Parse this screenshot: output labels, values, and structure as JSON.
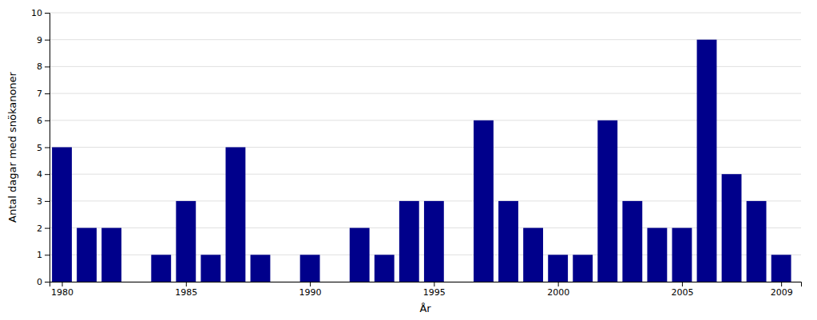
{
  "chart_data": {
    "type": "bar",
    "x": [
      1980,
      1981,
      1982,
      1983,
      1984,
      1985,
      1986,
      1987,
      1988,
      1989,
      1990,
      1991,
      1992,
      1993,
      1994,
      1995,
      1996,
      1997,
      1998,
      1999,
      2000,
      2001,
      2002,
      2003,
      2004,
      2005,
      2006,
      2007,
      2008,
      2009
    ],
    "values": [
      5,
      2,
      2,
      0,
      1,
      3,
      1,
      5,
      1,
      0,
      1,
      0,
      2,
      1,
      3,
      3,
      0,
      6,
      3,
      2,
      1,
      1,
      6,
      3,
      2,
      2,
      9,
      4,
      3,
      1
    ],
    "color": "#00008B",
    "xlabel": "År",
    "ylabel": "Antal dagar med snökanoner",
    "xlim": [
      1979.5,
      2009.8
    ],
    "ylim": [
      0,
      10
    ],
    "xticks": [
      1980,
      1985,
      1990,
      1995,
      2000,
      2005,
      2009
    ],
    "yticks": [
      0,
      1,
      2,
      3,
      4,
      5,
      6,
      7,
      8,
      9,
      10
    ],
    "grid": true
  }
}
